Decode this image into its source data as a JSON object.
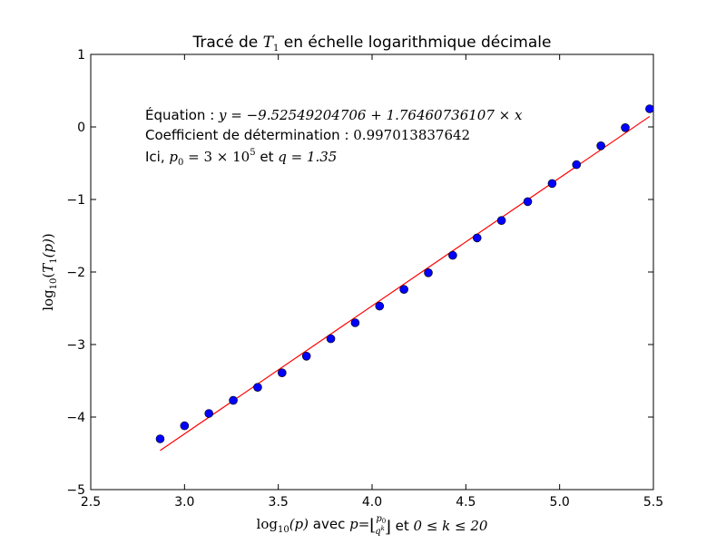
{
  "chart_data": {
    "type": "scatter",
    "title_text": "Tracé de ",
    "title_math": "T",
    "title_math_sub": "1",
    "title_suffix": " en échelle logarithmique décimale",
    "xlabel": {
      "log": "log",
      "log_sub": "10",
      "arg": "(p)",
      "avec": " avec ",
      "p_eq": "p",
      "eq": "=",
      "floor_num": "p",
      "floor_num_sub": "0",
      "floor_den": "q",
      "floor_den_sup": "k",
      "et": " et ",
      "range_math": "0 ≤ k ≤ 20"
    },
    "ylabel": {
      "log": "log",
      "log_sub": "10",
      "open": "(",
      "T": "T",
      "T_sub": "1",
      "arg": "(p)",
      "close": ")"
    },
    "xlim": [
      2.5,
      5.5
    ],
    "ylim": [
      -5,
      1
    ],
    "xticks": [
      "2.5",
      "3.0",
      "3.5",
      "4.0",
      "4.5",
      "5.0",
      "5.5"
    ],
    "yticks": [
      "1",
      "0",
      "−1",
      "−2",
      "−3",
      "−4",
      "−5"
    ],
    "grid": false,
    "annotations": {
      "equation_label": "Équation : ",
      "equation_math": "y = −9.52549204706 + 1.76460736107 × x",
      "coef_label": "Coefficient de détermination : ",
      "coef_math": "0.997013837642",
      "ici_label": "Ici, ",
      "ici_p": "p",
      "ici_p_sub": "0",
      "ici_eq": " = 3 × 10",
      "ici_exp": "5",
      "ici_et": " et ",
      "ici_q": "q = 1.35"
    },
    "series": [
      {
        "kind": "points",
        "color": "#0000ff",
        "x": [
          2.87,
          3.0,
          3.13,
          3.26,
          3.39,
          3.52,
          3.65,
          3.78,
          3.91,
          4.04,
          4.17,
          4.3,
          4.43,
          4.56,
          4.69,
          4.83,
          4.96,
          5.09,
          5.22,
          5.35,
          5.48
        ],
        "y": [
          -4.3,
          -4.12,
          -3.95,
          -3.77,
          -3.59,
          -3.39,
          -3.16,
          -2.92,
          -2.7,
          -2.47,
          -2.24,
          -2.01,
          -1.77,
          -1.53,
          -1.29,
          -1.03,
          -0.78,
          -0.52,
          -0.26,
          -0.01,
          0.25
        ]
      },
      {
        "kind": "fit",
        "color": "#ff0000",
        "intercept": -9.52549204706,
        "slope": 1.76460736107,
        "x_range": [
          2.87,
          5.48
        ]
      }
    ]
  }
}
